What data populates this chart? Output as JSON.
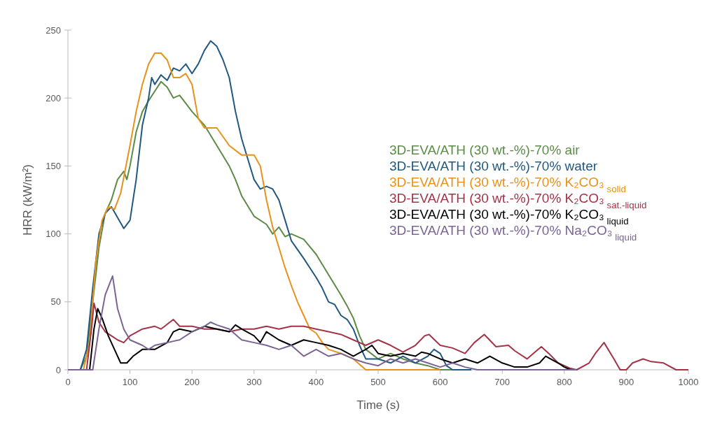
{
  "chart_data": {
    "type": "line",
    "xlabel": "Time (s)",
    "ylabel": "HRR (kW/m²)",
    "xlim": [
      0,
      1000
    ],
    "xticks": [
      0,
      100,
      200,
      300,
      400,
      500,
      600,
      700,
      800,
      900,
      1000
    ],
    "ylim": [
      0,
      250
    ],
    "yticks": [
      0,
      50,
      100,
      150,
      200,
      250
    ],
    "grid": false,
    "legend": "right",
    "marker": "none",
    "line_style": "solid",
    "series": [
      {
        "name": "3D-EVA/ATH (30 wt.-%)-70% air",
        "color": "#5b8c45",
        "x": [
          0,
          20,
          30,
          40,
          50,
          60,
          70,
          80,
          90,
          95,
          100,
          110,
          120,
          130,
          140,
          150,
          160,
          170,
          180,
          190,
          200,
          220,
          240,
          260,
          270,
          280,
          300,
          320,
          330,
          340,
          350,
          360,
          380,
          400,
          420,
          440,
          450,
          460,
          470,
          480,
          500,
          520,
          540,
          560,
          580,
          600,
          650
        ],
        "values": [
          0,
          0,
          10,
          50,
          90,
          115,
          125,
          140,
          146,
          140,
          150,
          175,
          190,
          198,
          205,
          212,
          208,
          200,
          202,
          196,
          190,
          180,
          165,
          150,
          140,
          128,
          113,
          107,
          100,
          105,
          98,
          100,
          96,
          85,
          70,
          55,
          47,
          38,
          25,
          15,
          8,
          12,
          8,
          5,
          3,
          0,
          0
        ]
      },
      {
        "name": "3D-EVA/ATH (30 wt.-%)-70% water",
        "color": "#21587f",
        "x": [
          0,
          20,
          30,
          40,
          50,
          60,
          70,
          80,
          90,
          100,
          110,
          120,
          130,
          135,
          140,
          150,
          160,
          170,
          180,
          190,
          200,
          210,
          220,
          230,
          240,
          250,
          260,
          270,
          280,
          290,
          300,
          310,
          320,
          330,
          340,
          350,
          360,
          380,
          390,
          400,
          410,
          420,
          430,
          440,
          450,
          460,
          470,
          480,
          500,
          520,
          540,
          560,
          580,
          590,
          600,
          610,
          620,
          650
        ],
        "values": [
          0,
          0,
          15,
          60,
          100,
          115,
          120,
          112,
          104,
          110,
          140,
          180,
          200,
          215,
          210,
          217,
          213,
          222,
          220,
          225,
          218,
          225,
          235,
          242,
          238,
          228,
          215,
          190,
          170,
          155,
          140,
          133,
          135,
          133,
          125,
          110,
          95,
          82,
          75,
          68,
          60,
          50,
          48,
          40,
          37,
          30,
          18,
          8,
          8,
          5,
          10,
          5,
          10,
          15,
          12,
          3,
          0,
          0
        ]
      },
      {
        "name": "3D-EVA/ATH (30 wt.-%)-70% K₂CO₃$_{ solid}$",
        "color": "#e8911c",
        "x": [
          0,
          25,
          35,
          45,
          55,
          65,
          75,
          85,
          100,
          110,
          120,
          130,
          140,
          150,
          160,
          170,
          180,
          190,
          200,
          210,
          220,
          240,
          260,
          280,
          300,
          310,
          320,
          330,
          340,
          350,
          360,
          370,
          380,
          390,
          400,
          410,
          420,
          440,
          460,
          470,
          480,
          600
        ],
        "values": [
          0,
          0,
          20,
          80,
          110,
          120,
          118,
          130,
          165,
          190,
          210,
          225,
          233,
          233,
          228,
          215,
          215,
          218,
          210,
          185,
          178,
          178,
          165,
          158,
          158,
          150,
          125,
          105,
          90,
          75,
          62,
          50,
          40,
          30,
          27,
          20,
          15,
          12,
          8,
          4,
          0,
          0
        ]
      },
      {
        "name": "3D-EVA/ATH (30 wt.-%)-70% K₂CO₃$_{ sat.-liquid}$",
        "color": "#a43347",
        "x": [
          0,
          30,
          38,
          42,
          50,
          60,
          70,
          80,
          90,
          100,
          120,
          140,
          150,
          170,
          180,
          200,
          220,
          240,
          260,
          280,
          300,
          320,
          340,
          360,
          380,
          400,
          420,
          440,
          460,
          480,
          500,
          520,
          540,
          560,
          575,
          582,
          600,
          620,
          640,
          655,
          671,
          690,
          710,
          720,
          740,
          750,
          763,
          775,
          790,
          810,
          820,
          840,
          850,
          864,
          880,
          890,
          900,
          910,
          927,
          940,
          960,
          980,
          1000
        ],
        "values": [
          0,
          0,
          30,
          49,
          35,
          28,
          25,
          22,
          20,
          25,
          30,
          32,
          30,
          37,
          32,
          32,
          30,
          30,
          28,
          30,
          30,
          32,
          30,
          32,
          32,
          30,
          28,
          26,
          22,
          18,
          22,
          18,
          13,
          18,
          25,
          26,
          18,
          16,
          12,
          20,
          26,
          17,
          18,
          14,
          8,
          12,
          17,
          12,
          5,
          1,
          0,
          5,
          12,
          20,
          8,
          0,
          0,
          5,
          8,
          6,
          5,
          0,
          0
        ]
      },
      {
        "name": "3D-EVA/ATH (30 wt.-%)-70% K₂CO₃$_{ liquid}$",
        "color": "#000000",
        "x": [
          0,
          35,
          42,
          48,
          55,
          65,
          75,
          85,
          95,
          105,
          120,
          140,
          160,
          170,
          180,
          200,
          220,
          240,
          260,
          270,
          280,
          300,
          310,
          320,
          340,
          360,
          380,
          400,
          420,
          440,
          460,
          480,
          490,
          500,
          520,
          540,
          560,
          570,
          580,
          600,
          620,
          640,
          660,
          680,
          700,
          720,
          740,
          760,
          770,
          790,
          800,
          810,
          820
        ],
        "values": [
          0,
          0,
          30,
          45,
          38,
          25,
          15,
          5,
          5,
          10,
          15,
          15,
          20,
          28,
          30,
          28,
          32,
          30,
          28,
          33,
          30,
          25,
          20,
          28,
          22,
          18,
          22,
          20,
          18,
          15,
          10,
          15,
          18,
          12,
          10,
          12,
          10,
          13,
          12,
          8,
          5,
          8,
          5,
          10,
          5,
          2,
          2,
          5,
          10,
          5,
          2,
          0,
          0
        ]
      },
      {
        "name": "3D-EVA/ATH (30 wt.-%)-70% Na₂CO₃$_{ liquid}$",
        "color": "#7a6496",
        "x": [
          0,
          40,
          50,
          60,
          72,
          80,
          90,
          100,
          120,
          130,
          140,
          160,
          180,
          200,
          220,
          230,
          240,
          260,
          280,
          300,
          320,
          340,
          360,
          380,
          400,
          420,
          440,
          460,
          480,
          500,
          520,
          540,
          560,
          580,
          600,
          620,
          640,
          660,
          820
        ],
        "values": [
          0,
          0,
          30,
          55,
          69,
          45,
          30,
          22,
          18,
          15,
          18,
          20,
          22,
          28,
          32,
          35,
          33,
          30,
          22,
          20,
          18,
          15,
          18,
          10,
          15,
          10,
          12,
          8,
          5,
          3,
          8,
          5,
          8,
          5,
          2,
          5,
          2,
          0,
          0
        ]
      }
    ]
  }
}
